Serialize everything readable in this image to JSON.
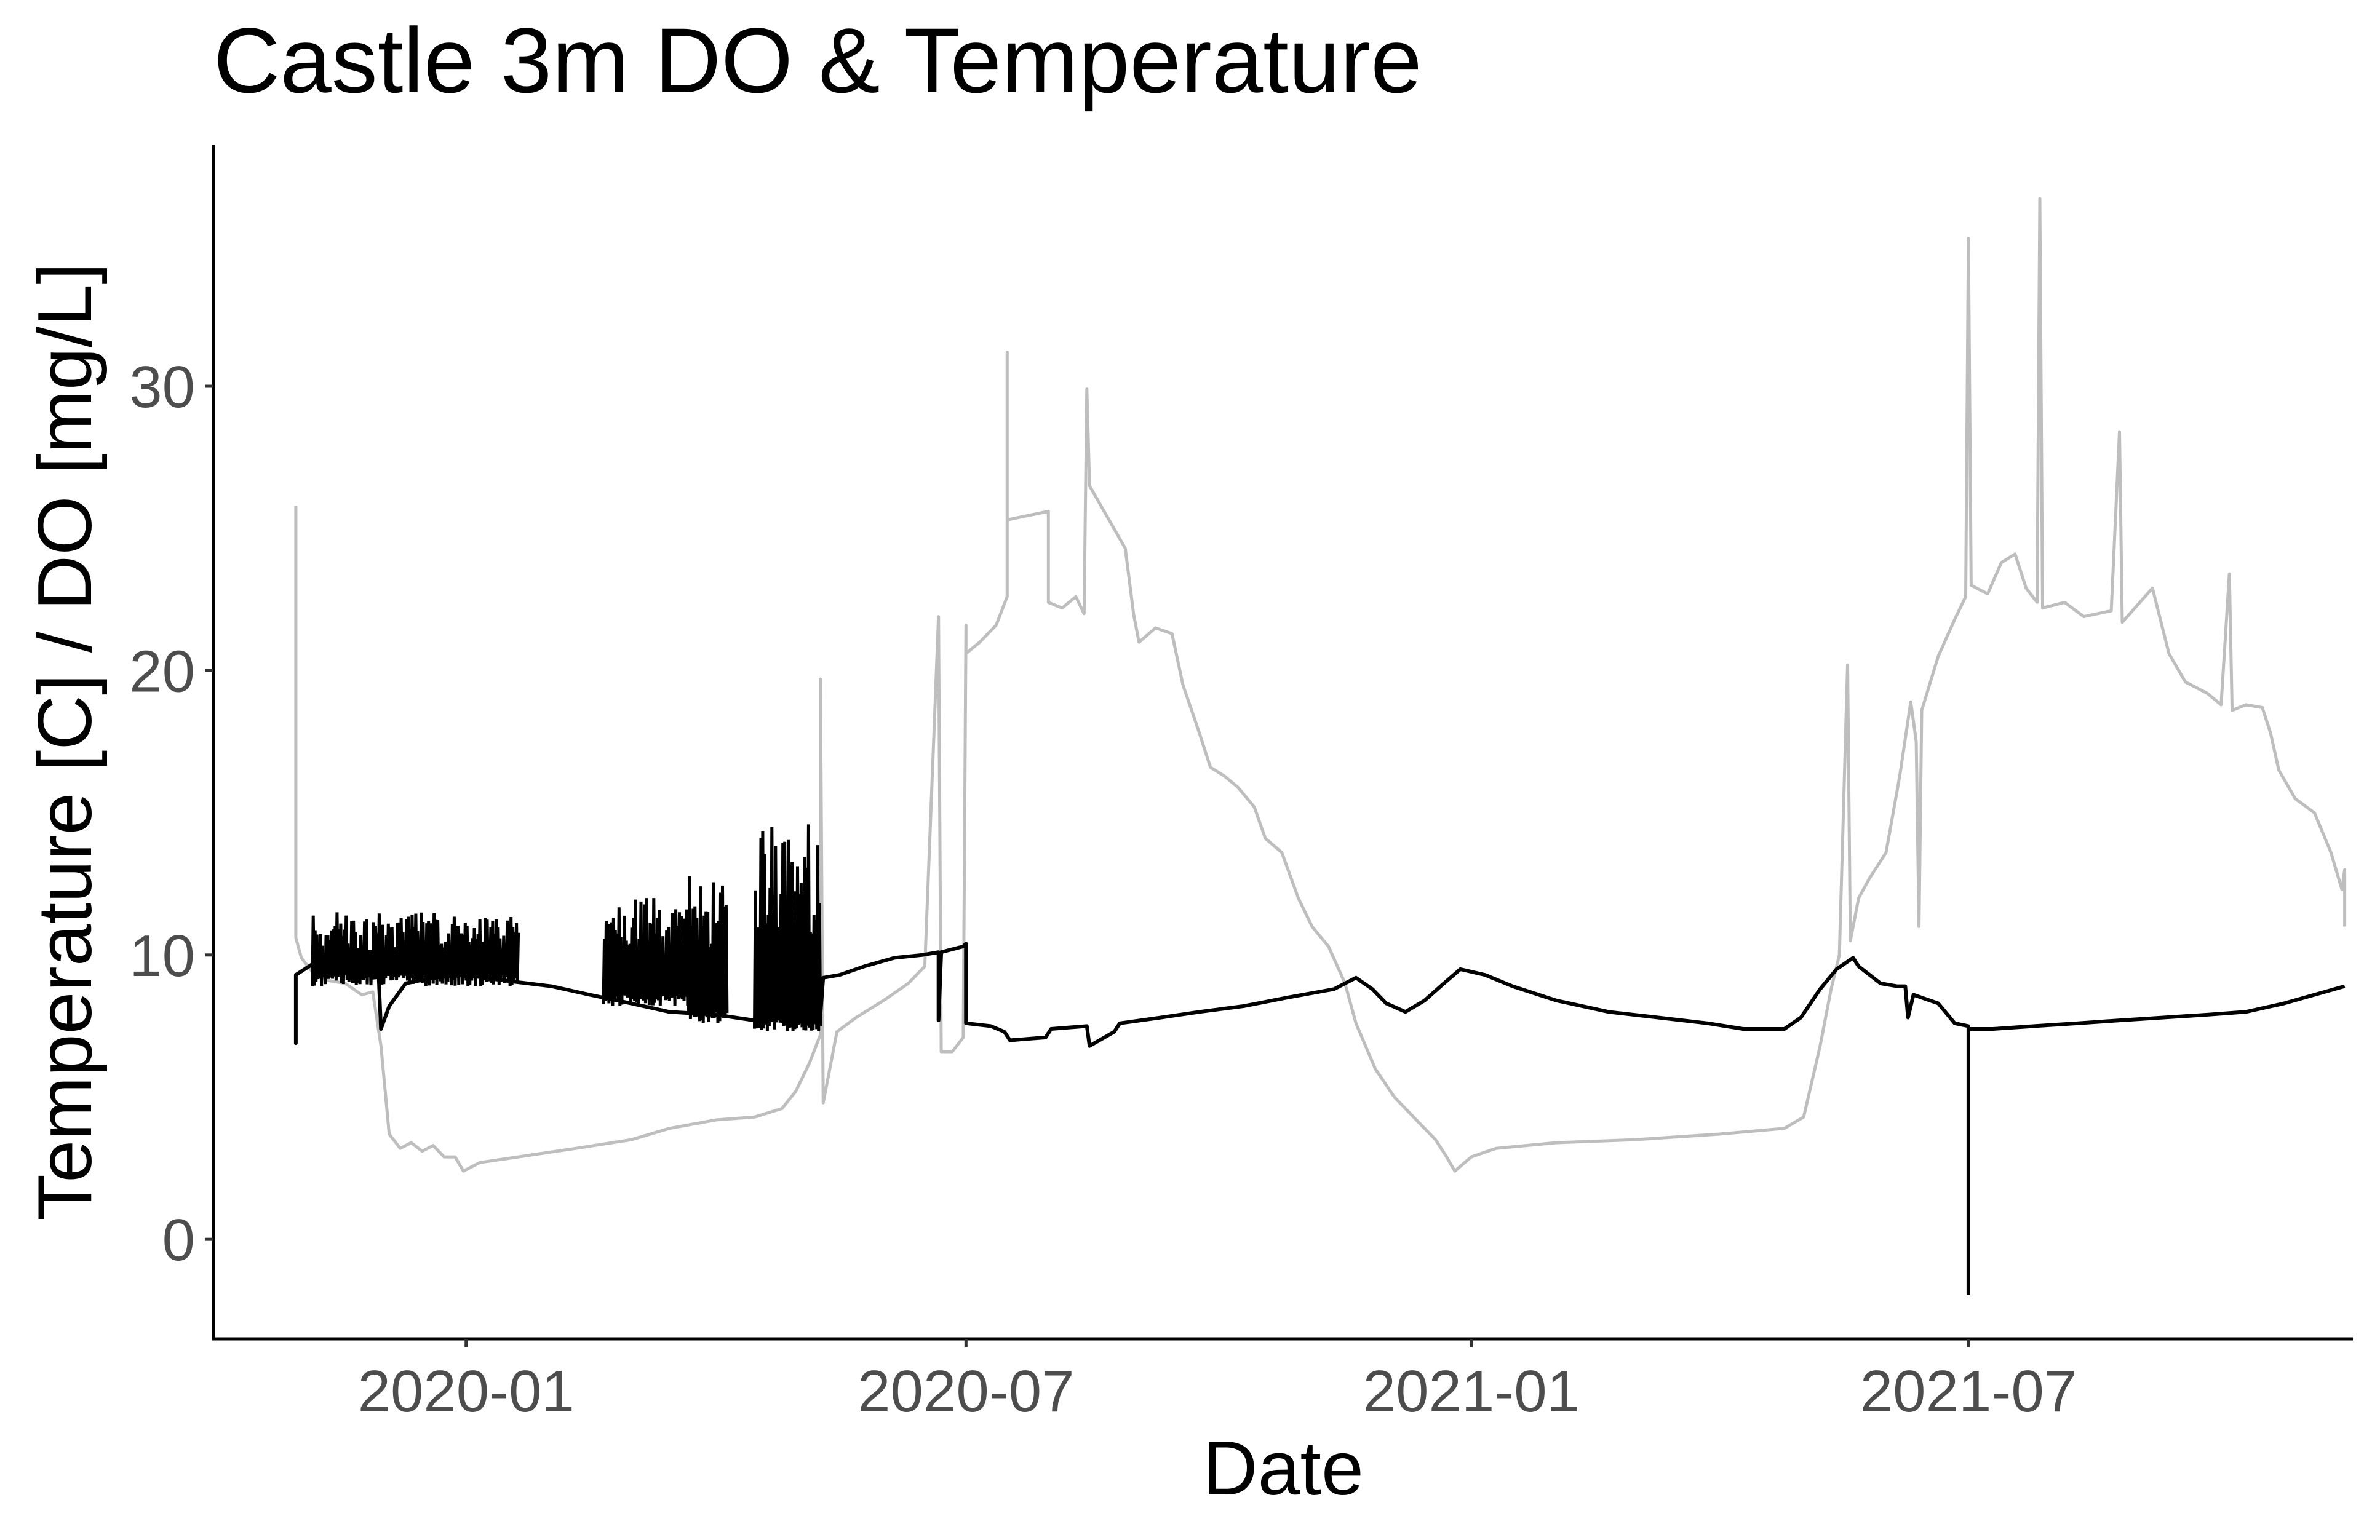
{
  "chart_data": {
    "type": "line",
    "title": "Castle 3m DO & Temperature",
    "xlabel": "Date",
    "ylabel": "Temperature [C] / DO [mg/L]",
    "x_axis_type": "date",
    "xlim": [
      "2019-10-01",
      "2021-11-18"
    ],
    "ylim": [
      -3.5,
      38.5
    ],
    "x_ticks": [
      "2020-01-01",
      "2020-07-01",
      "2021-01-01",
      "2021-07-01"
    ],
    "x_tick_labels": [
      "2020-01",
      "2020-07",
      "2021-01",
      "2021-07"
    ],
    "y_ticks": [
      0,
      10,
      20,
      30
    ],
    "y_tick_labels": [
      "0",
      "10",
      "20",
      "30"
    ],
    "grid": false,
    "legend": "none",
    "series": [
      {
        "color": "#bebebe",
        "points": [
          [
            "2019-10-31",
            25.8
          ],
          [
            "2019-10-31",
            10.6
          ],
          [
            "2019-11-02",
            9.9
          ],
          [
            "2019-11-06",
            9.4
          ],
          [
            "2019-11-12",
            9.1
          ],
          [
            "2019-11-18",
            9.0
          ],
          [
            "2019-11-24",
            8.6
          ],
          [
            "2019-11-28",
            8.7
          ],
          [
            "2019-12-01",
            6.8
          ],
          [
            "2019-12-04",
            3.7
          ],
          [
            "2019-12-08",
            3.2
          ],
          [
            "2019-12-12",
            3.4
          ],
          [
            "2019-12-16",
            3.1
          ],
          [
            "2019-12-20",
            3.3
          ],
          [
            "2019-12-24",
            2.9
          ],
          [
            "2019-12-28",
            2.9
          ],
          [
            "2019-12-31",
            2.4
          ],
          [
            "2020-01-06",
            2.7
          ],
          [
            "2020-01-20",
            2.9
          ],
          [
            "2020-02-10",
            3.2
          ],
          [
            "2020-03-01",
            3.5
          ],
          [
            "2020-03-15",
            3.9
          ],
          [
            "2020-04-01",
            4.2
          ],
          [
            "2020-04-15",
            4.3
          ],
          [
            "2020-04-25",
            4.6
          ],
          [
            "2020-04-30",
            5.2
          ],
          [
            "2020-05-05",
            6.2
          ],
          [
            "2020-05-09",
            7.2
          ],
          [
            "2020-05-09",
            19.7
          ],
          [
            "2020-05-10",
            4.8
          ],
          [
            "2020-05-15",
            7.3
          ],
          [
            "2020-05-22",
            7.8
          ],
          [
            "2020-06-01",
            8.4
          ],
          [
            "2020-06-10",
            9.0
          ],
          [
            "2020-06-16",
            9.6
          ],
          [
            "2020-06-21",
            21.9
          ],
          [
            "2020-06-22",
            6.6
          ],
          [
            "2020-06-26",
            6.6
          ],
          [
            "2020-06-30",
            7.1
          ],
          [
            "2020-07-01",
            21.6
          ],
          [
            "2020-07-01",
            20.6
          ],
          [
            "2020-07-06",
            21.0
          ],
          [
            "2020-07-12",
            21.6
          ],
          [
            "2020-07-16",
            22.6
          ],
          [
            "2020-07-16",
            31.2
          ],
          [
            "2020-07-16",
            25.3
          ],
          [
            "2020-07-31",
            25.6
          ],
          [
            "2020-07-31",
            22.4
          ],
          [
            "2020-08-05",
            22.2
          ],
          [
            "2020-08-10",
            22.6
          ],
          [
            "2020-08-13",
            22.0
          ],
          [
            "2020-08-14",
            29.9
          ],
          [
            "2020-08-15",
            26.5
          ],
          [
            "2020-08-28",
            24.3
          ],
          [
            "2020-08-31",
            22.0
          ],
          [
            "2020-09-02",
            21.0
          ],
          [
            "2020-09-08",
            21.5
          ],
          [
            "2020-09-14",
            21.3
          ],
          [
            "2020-09-18",
            19.5
          ],
          [
            "2020-09-24",
            17.8
          ],
          [
            "2020-09-28",
            16.6
          ],
          [
            "2020-10-03",
            16.3
          ],
          [
            "2020-10-08",
            15.9
          ],
          [
            "2020-10-14",
            15.2
          ],
          [
            "2020-10-18",
            14.1
          ],
          [
            "2020-10-24",
            13.6
          ],
          [
            "2020-10-30",
            12.0
          ],
          [
            "2020-11-04",
            11.0
          ],
          [
            "2020-11-10",
            10.3
          ],
          [
            "2020-11-16",
            9.0
          ],
          [
            "2020-11-20",
            7.6
          ],
          [
            "2020-11-27",
            6.0
          ],
          [
            "2020-12-04",
            5.0
          ],
          [
            "2020-12-12",
            4.2
          ],
          [
            "2020-12-19",
            3.5
          ],
          [
            "2020-12-23",
            2.9
          ],
          [
            "2020-12-26",
            2.4
          ],
          [
            "2021-01-01",
            2.9
          ],
          [
            "2021-01-10",
            3.2
          ],
          [
            "2021-02-01",
            3.4
          ],
          [
            "2021-03-01",
            3.5
          ],
          [
            "2021-04-01",
            3.7
          ],
          [
            "2021-04-25",
            3.9
          ],
          [
            "2021-05-02",
            4.3
          ],
          [
            "2021-05-08",
            6.8
          ],
          [
            "2021-05-12",
            8.8
          ],
          [
            "2021-05-15",
            10.0
          ],
          [
            "2021-05-18",
            20.2
          ],
          [
            "2021-05-19",
            10.5
          ],
          [
            "2021-05-22",
            12.0
          ],
          [
            "2021-05-26",
            12.7
          ],
          [
            "2021-06-01",
            13.6
          ],
          [
            "2021-06-06",
            16.3
          ],
          [
            "2021-06-10",
            18.9
          ],
          [
            "2021-06-12",
            17.5
          ],
          [
            "2021-06-13",
            11.0
          ],
          [
            "2021-06-14",
            18.6
          ],
          [
            "2021-06-20",
            20.5
          ],
          [
            "2021-06-26",
            21.8
          ],
          [
            "2021-06-30",
            22.6
          ],
          [
            "2021-07-01",
            35.2
          ],
          [
            "2021-07-02",
            23.0
          ],
          [
            "2021-07-08",
            22.7
          ],
          [
            "2021-07-13",
            23.8
          ],
          [
            "2021-07-18",
            24.1
          ],
          [
            "2021-07-22",
            22.9
          ],
          [
            "2021-07-26",
            22.4
          ],
          [
            "2021-07-27",
            36.6
          ],
          [
            "2021-07-28",
            22.2
          ],
          [
            "2021-08-05",
            22.4
          ],
          [
            "2021-08-12",
            21.9
          ],
          [
            "2021-08-22",
            22.1
          ],
          [
            "2021-08-25",
            28.4
          ],
          [
            "2021-08-26",
            21.7
          ],
          [
            "2021-09-06",
            22.9
          ],
          [
            "2021-09-12",
            20.6
          ],
          [
            "2021-09-18",
            19.6
          ],
          [
            "2021-09-26",
            19.2
          ],
          [
            "2021-10-01",
            18.8
          ],
          [
            "2021-10-04",
            23.4
          ],
          [
            "2021-10-05",
            18.6
          ],
          [
            "2021-10-10",
            18.8
          ],
          [
            "2021-10-16",
            18.7
          ],
          [
            "2021-10-19",
            17.8
          ],
          [
            "2021-10-22",
            16.5
          ],
          [
            "2021-10-28",
            15.5
          ],
          [
            "2021-11-04",
            15.0
          ],
          [
            "2021-11-10",
            13.6
          ],
          [
            "2021-11-14",
            12.3
          ],
          [
            "2021-11-15",
            13.0
          ],
          [
            "2021-11-15",
            11.0
          ]
        ]
      },
      {
        "color": "#000000",
        "points": [
          [
            "2019-10-31",
            9.2
          ],
          [
            "2019-10-31",
            6.9
          ],
          [
            "2019-10-31",
            9.3
          ],
          [
            "2019-11-08",
            9.8
          ],
          [
            "2019-11-15",
            10.1
          ],
          [
            "2019-11-22",
            9.9
          ],
          [
            "2019-11-30",
            9.6
          ],
          [
            "2019-12-01",
            7.4
          ],
          [
            "2019-12-04",
            8.2
          ],
          [
            "2019-12-10",
            9.0
          ],
          [
            "2019-12-20",
            9.2
          ],
          [
            "2019-12-31",
            9.3
          ],
          [
            "2020-01-15",
            9.1
          ],
          [
            "2020-02-01",
            8.9
          ],
          [
            "2020-02-15",
            8.6
          ],
          [
            "2020-03-01",
            8.3
          ],
          [
            "2020-03-15",
            8.0
          ],
          [
            "2020-04-01",
            7.9
          ],
          [
            "2020-04-15",
            7.7
          ],
          [
            "2020-04-20",
            7.8
          ],
          [
            "2020-05-01",
            8.0
          ],
          [
            "2020-05-09",
            7.9
          ],
          [
            "2020-05-10",
            9.2
          ],
          [
            "2020-05-16",
            9.3
          ],
          [
            "2020-05-25",
            9.6
          ],
          [
            "2020-06-05",
            9.9
          ],
          [
            "2020-06-15",
            10.0
          ],
          [
            "2020-06-21",
            10.1
          ],
          [
            "2020-06-21",
            7.7
          ],
          [
            "2020-06-22",
            10.1
          ],
          [
            "2020-06-30",
            10.3
          ],
          [
            "2020-07-01",
            10.4
          ],
          [
            "2020-07-01",
            7.6
          ],
          [
            "2020-07-10",
            7.5
          ],
          [
            "2020-07-15",
            7.3
          ],
          [
            "2020-07-17",
            7.0
          ],
          [
            "2020-07-30",
            7.1
          ],
          [
            "2020-08-01",
            7.4
          ],
          [
            "2020-08-14",
            7.5
          ],
          [
            "2020-08-15",
            6.8
          ],
          [
            "2020-08-24",
            7.3
          ],
          [
            "2020-08-26",
            7.6
          ],
          [
            "2020-09-10",
            7.8
          ],
          [
            "2020-09-24",
            8.0
          ],
          [
            "2020-10-10",
            8.2
          ],
          [
            "2020-10-26",
            8.5
          ],
          [
            "2020-11-12",
            8.8
          ],
          [
            "2020-11-20",
            9.2
          ],
          [
            "2020-11-26",
            8.8
          ],
          [
            "2020-12-01",
            8.3
          ],
          [
            "2020-12-08",
            8.0
          ],
          [
            "2020-12-15",
            8.4
          ],
          [
            "2020-12-22",
            9.0
          ],
          [
            "2020-12-28",
            9.5
          ],
          [
            "2021-01-06",
            9.3
          ],
          [
            "2021-01-16",
            8.9
          ],
          [
            "2021-02-01",
            8.4
          ],
          [
            "2021-02-20",
            8.0
          ],
          [
            "2021-03-10",
            7.8
          ],
          [
            "2021-03-28",
            7.6
          ],
          [
            "2021-04-10",
            7.4
          ],
          [
            "2021-04-25",
            7.4
          ],
          [
            "2021-05-01",
            7.8
          ],
          [
            "2021-05-08",
            8.8
          ],
          [
            "2021-05-14",
            9.5
          ],
          [
            "2021-05-20",
            9.9
          ],
          [
            "2021-05-22",
            9.6
          ],
          [
            "2021-05-30",
            9.0
          ],
          [
            "2021-06-05",
            8.9
          ],
          [
            "2021-06-08",
            8.9
          ],
          [
            "2021-06-09",
            7.8
          ],
          [
            "2021-06-11",
            8.6
          ],
          [
            "2021-06-20",
            8.3
          ],
          [
            "2021-06-26",
            7.6
          ],
          [
            "2021-07-01",
            7.5
          ],
          [
            "2021-07-01",
            -1.9
          ],
          [
            "2021-07-01",
            7.4
          ],
          [
            "2021-07-10",
            7.4
          ],
          [
            "2021-07-25",
            7.5
          ],
          [
            "2021-08-10",
            7.6
          ],
          [
            "2021-08-25",
            7.7
          ],
          [
            "2021-09-10",
            7.8
          ],
          [
            "2021-09-26",
            7.9
          ],
          [
            "2021-10-10",
            8.0
          ],
          [
            "2021-10-24",
            8.3
          ],
          [
            "2021-11-04",
            8.6
          ],
          [
            "2021-11-15",
            8.9
          ]
        ],
        "oscillating_segments": [
          {
            "start": "2019-11-06",
            "end": "2020-01-20",
            "low": 8.9,
            "high": 11.5
          },
          {
            "start": "2020-02-20",
            "end": "2020-03-22",
            "low": 8.2,
            "high": 12.2
          },
          {
            "start": "2020-03-22",
            "end": "2020-04-05",
            "low": 7.6,
            "high": 13.0
          },
          {
            "start": "2020-04-15",
            "end": "2020-05-09",
            "low": 7.3,
            "high": 14.6
          }
        ]
      }
    ]
  }
}
